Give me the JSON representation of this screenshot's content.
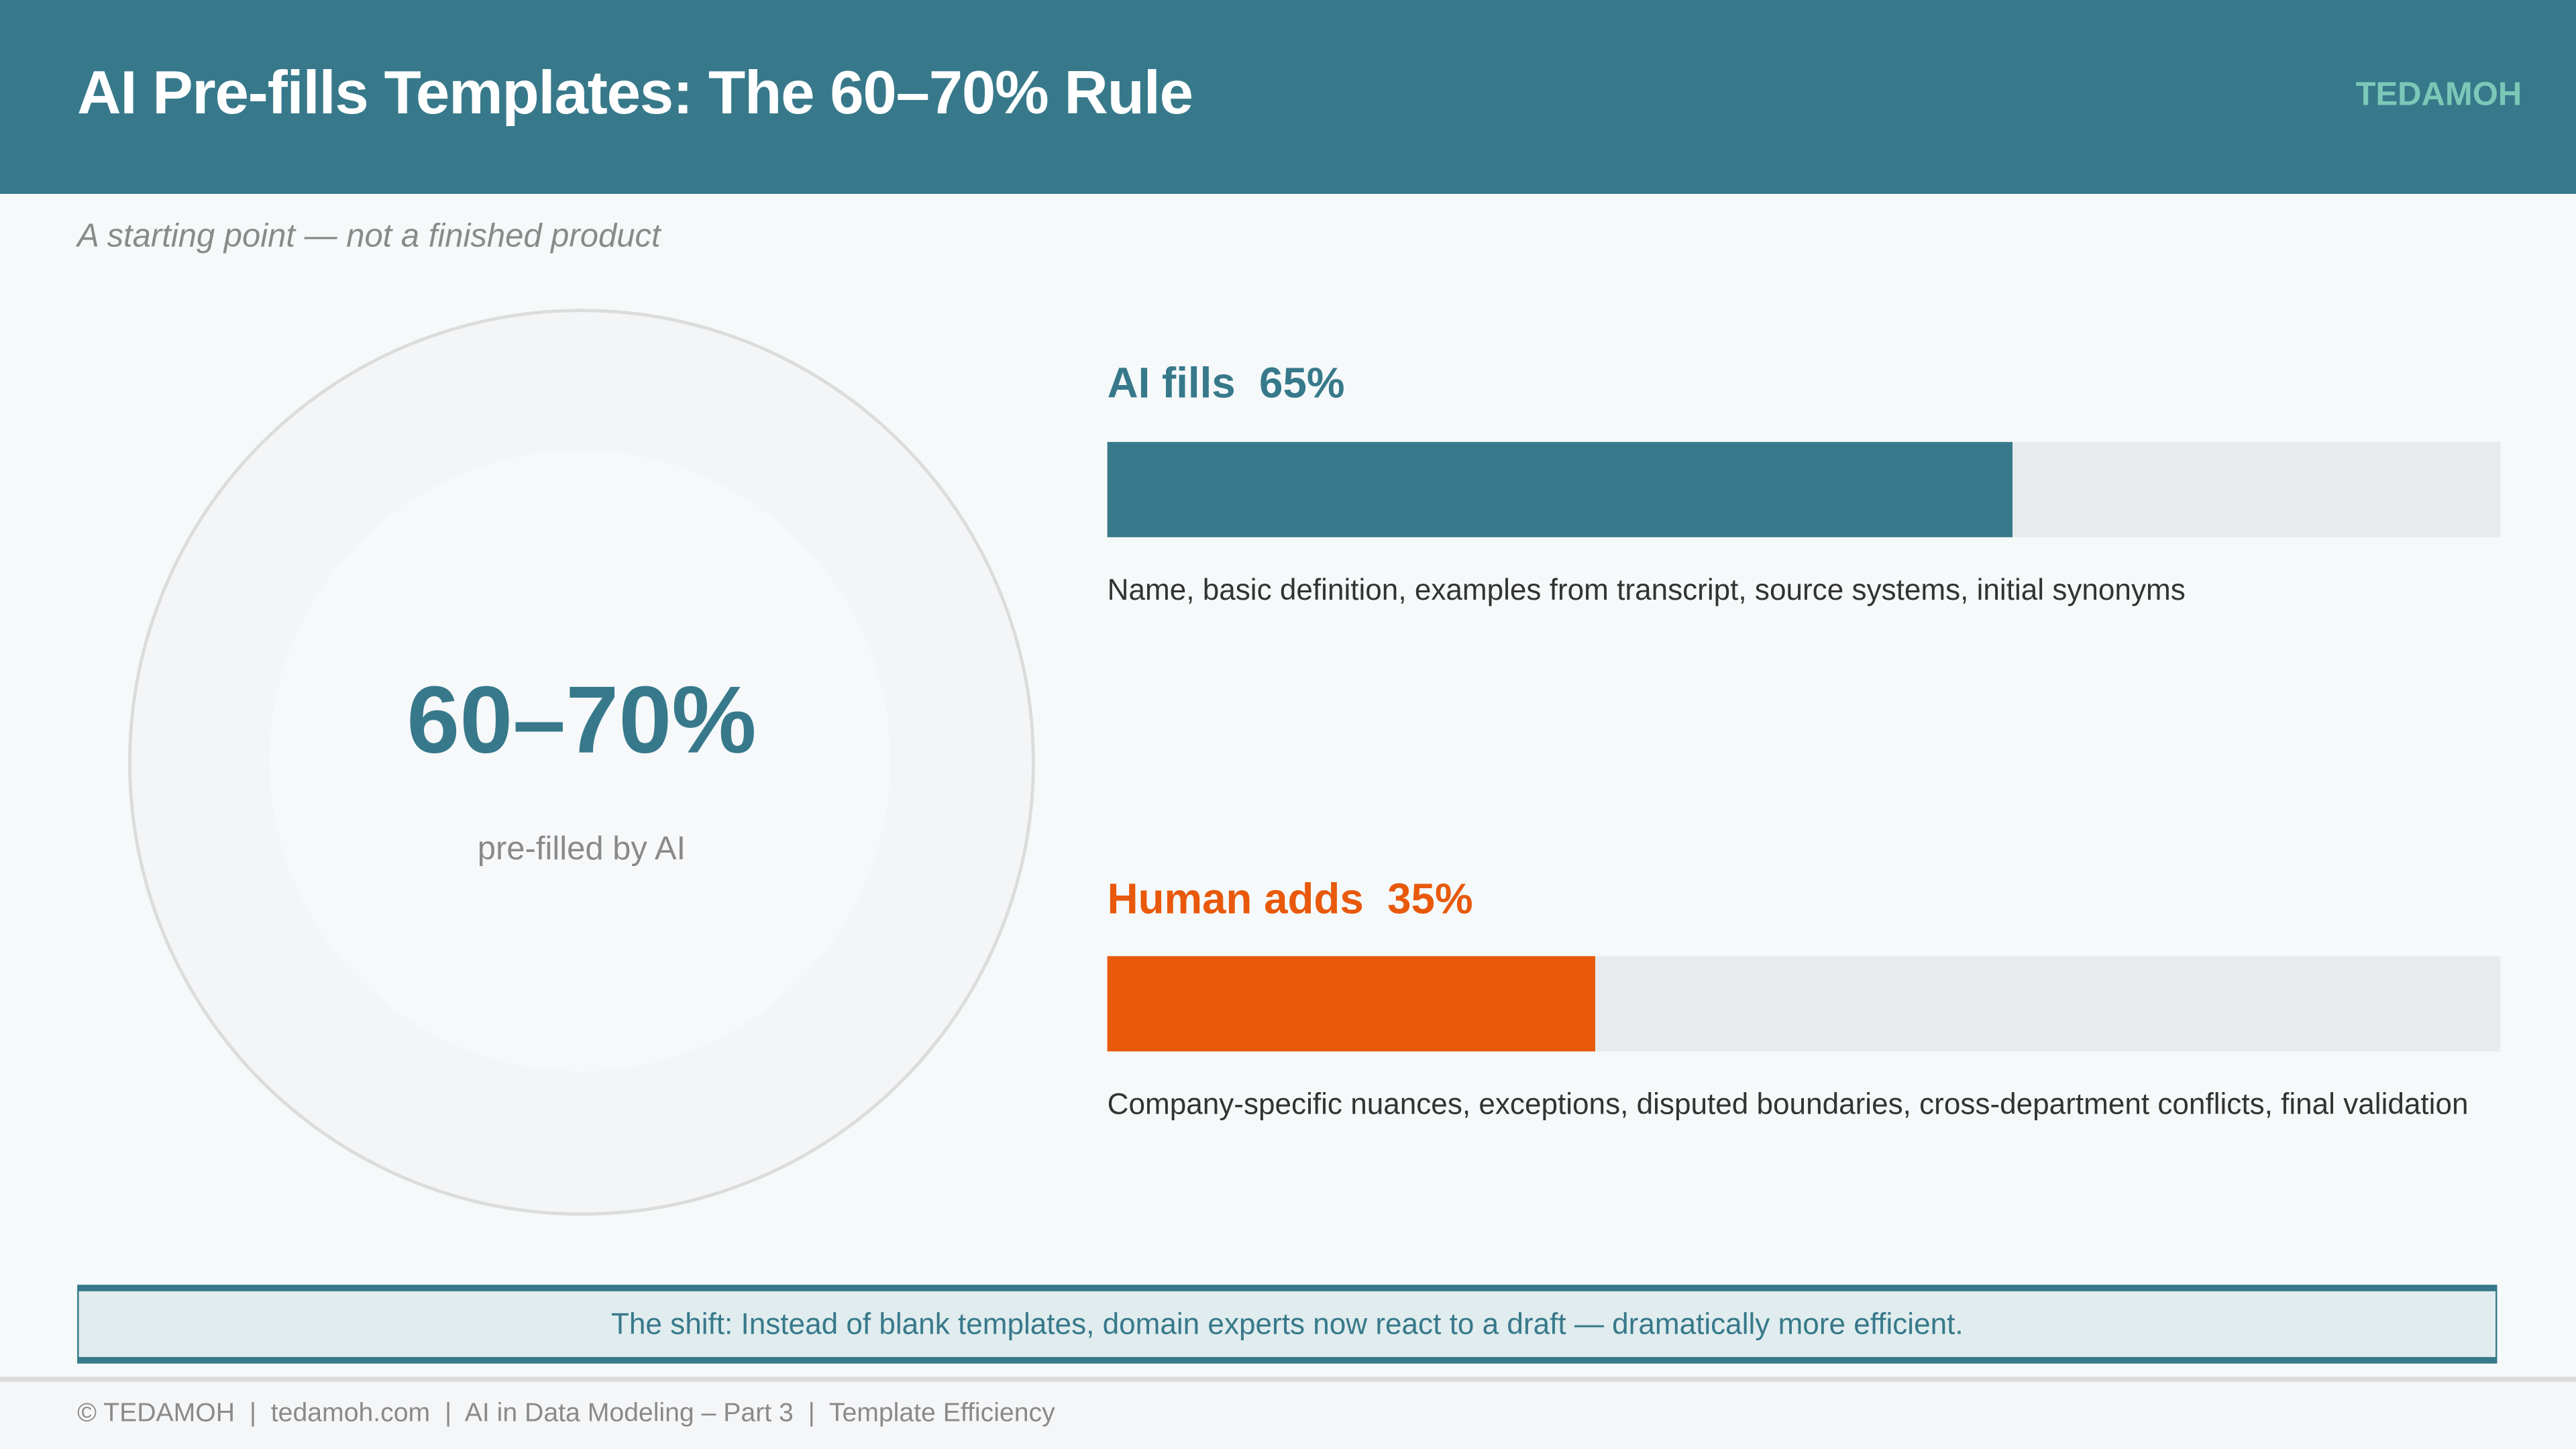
{
  "header": {
    "title": "AI Pre-fills Templates: The 60–70% Rule",
    "brand": "TEDAMOH"
  },
  "subtitle": "A starting point — not a finished product",
  "donut": {
    "value": "60–70%",
    "caption": "pre-filled by AI"
  },
  "bars": [
    {
      "label": "AI fills  65%",
      "percent": 65,
      "color": "#37798a",
      "description": "Name, basic definition, examples from transcript, source systems, initial synonyms"
    },
    {
      "label": "Human adds  35%",
      "percent": 35,
      "color": "#e8590c",
      "description": "Company-specific nuances, exceptions, disputed boundaries, cross-department conflicts, final validation"
    }
  ],
  "callout": "The shift: Instead of blank templates, domain experts now react to a draft — dramatically more efficient.",
  "footer": "© TEDAMOH  |  tedamoh.com  |  AI in Data Modeling – Part 3  |  Template Efficiency"
}
